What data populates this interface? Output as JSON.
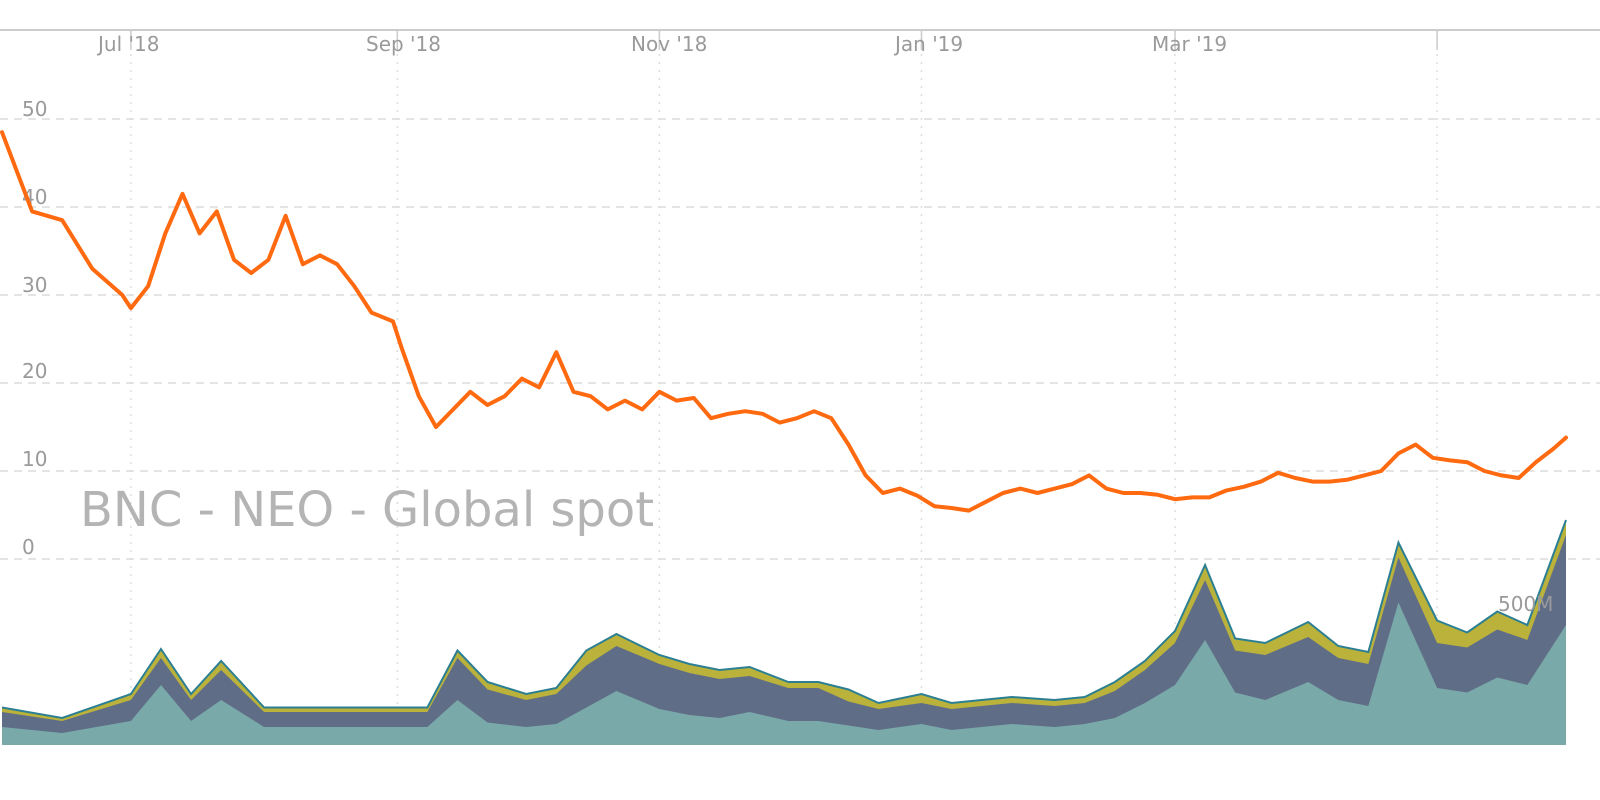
{
  "chart_data": [
    {
      "type": "line",
      "title": "BNC - NEO - Global spot",
      "xlabel": "",
      "ylabel": "",
      "x_tick_labels": [
        "Jul '18",
        "Sep '18",
        "Nov '18",
        "Jan '19",
        "Mar '19"
      ],
      "y_tick_labels": [
        "50",
        "40",
        "30",
        "20",
        "10",
        "0"
      ],
      "ylim": [
        0,
        50
      ],
      "grid": true,
      "legend": "none",
      "colors": {
        "price": "#ff6a10",
        "grid": "#dcdcdc",
        "text": "#9a9a9a"
      },
      "series": [
        {
          "x": [
            "2018-06-01",
            "2018-06-08",
            "2018-06-15",
            "2018-06-22",
            "2018-06-29",
            "2018-07-01",
            "2018-07-05",
            "2018-07-09",
            "2018-07-13",
            "2018-07-17",
            "2018-07-21",
            "2018-07-25",
            "2018-07-29",
            "2018-08-02",
            "2018-08-06",
            "2018-08-10",
            "2018-08-14",
            "2018-08-18",
            "2018-08-22",
            "2018-08-26",
            "2018-08-31",
            "2018-09-02",
            "2018-09-06",
            "2018-09-10",
            "2018-09-14",
            "2018-09-18",
            "2018-09-22",
            "2018-09-26",
            "2018-09-30",
            "2018-10-04",
            "2018-10-08",
            "2018-10-12",
            "2018-10-16",
            "2018-10-20",
            "2018-10-24",
            "2018-10-28",
            "2018-11-01",
            "2018-11-05",
            "2018-11-09",
            "2018-11-13",
            "2018-11-17",
            "2018-11-21",
            "2018-11-25",
            "2018-11-29",
            "2018-12-03",
            "2018-12-07",
            "2018-12-11",
            "2018-12-15",
            "2018-12-19",
            "2018-12-23",
            "2018-12-27",
            "2018-12-31",
            "2019-01-04",
            "2019-01-08",
            "2019-01-12",
            "2019-01-16",
            "2019-01-20",
            "2019-01-24",
            "2019-01-28",
            "2019-02-01",
            "2019-02-05",
            "2019-02-09",
            "2019-02-13",
            "2019-02-17",
            "2019-02-21",
            "2019-02-25",
            "2019-03-01",
            "2019-03-05",
            "2019-03-09",
            "2019-03-13",
            "2019-03-17",
            "2019-03-21",
            "2019-03-25",
            "2019-03-29",
            "2019-04-02",
            "2019-04-06",
            "2019-04-10",
            "2019-04-14",
            "2019-04-18",
            "2019-04-22",
            "2019-04-26",
            "2019-04-30",
            "2019-05-04",
            "2019-05-08",
            "2019-05-12",
            "2019-05-16",
            "2019-05-20",
            "2019-05-24",
            "2019-05-28",
            "2019-05-31"
          ],
          "values": [
            48.5,
            39.5,
            38.5,
            33,
            30,
            28.5,
            31,
            37,
            41.5,
            37,
            39.5,
            34,
            32.5,
            34,
            39,
            33.5,
            34.5,
            33.5,
            31,
            28,
            27,
            24,
            18.5,
            15,
            17,
            19,
            17.5,
            18.5,
            20.5,
            19.5,
            23.5,
            19,
            18.5,
            17,
            18,
            17,
            19,
            18,
            18.3,
            16,
            16.5,
            16.8,
            16.5,
            15.5,
            16,
            16.8,
            16,
            13,
            9.5,
            7.5,
            8,
            7.2,
            6,
            5.8,
            5.5,
            6.5,
            7.5,
            8,
            7.5,
            8,
            8.5,
            9.5,
            8,
            7.5,
            7.5,
            7.3,
            6.8,
            7,
            7,
            7.8,
            8.2,
            8.8,
            9.8,
            9.2,
            8.8,
            8.8,
            9,
            9.5,
            10,
            12,
            13,
            11.5,
            11.2,
            11,
            10,
            9.5,
            9.2,
            11,
            12.5,
            13.8
          ]
        }
      ]
    },
    {
      "type": "area",
      "title": "",
      "xlabel": "",
      "ylabel": "",
      "y_tick_labels": [
        "500M"
      ],
      "stacked": true,
      "colors": {
        "layer1": "#7aa9a9",
        "layer2": "#5f6d87",
        "layer3": "#bab23a",
        "outline": "#2c7f93"
      },
      "x": [
        "2018-06-01",
        "2018-06-15",
        "2018-07-01",
        "2018-07-08",
        "2018-07-15",
        "2018-07-22",
        "2018-08-01",
        "2018-08-15",
        "2018-09-01",
        "2018-09-08",
        "2018-09-15",
        "2018-09-22",
        "2018-10-01",
        "2018-10-08",
        "2018-10-15",
        "2018-10-22",
        "2018-11-01",
        "2018-11-08",
        "2018-11-15",
        "2018-11-22",
        "2018-12-01",
        "2018-12-08",
        "2018-12-15",
        "2018-12-22",
        "2019-01-01",
        "2019-01-08",
        "2019-01-15",
        "2019-01-22",
        "2019-02-01",
        "2019-02-08",
        "2019-02-15",
        "2019-02-22",
        "2019-03-01",
        "2019-03-08",
        "2019-03-15",
        "2019-03-22",
        "2019-04-01",
        "2019-04-08",
        "2019-04-15",
        "2019-04-22",
        "2019-05-01",
        "2019-05-08",
        "2019-05-15",
        "2019-05-22",
        "2019-05-31"
      ],
      "series": [
        {
          "values": [
            12,
            8,
            16,
            40,
            16,
            30,
            12,
            12,
            12,
            12,
            30,
            15,
            12,
            14,
            25,
            36,
            24,
            20,
            18,
            22,
            16,
            16,
            13,
            10,
            14,
            10,
            12,
            14,
            12,
            14,
            18,
            28,
            40,
            70,
            35,
            30,
            42,
            30,
            26,
            95,
            38,
            35,
            45,
            40,
            80
          ]
        },
        {
          "values": [
            10,
            8,
            14,
            18,
            14,
            20,
            10,
            10,
            10,
            10,
            28,
            22,
            18,
            20,
            28,
            30,
            30,
            28,
            26,
            24,
            22,
            22,
            16,
            14,
            14,
            14,
            14,
            14,
            14,
            14,
            18,
            22,
            28,
            40,
            28,
            30,
            30,
            28,
            28,
            30,
            30,
            30,
            32,
            30,
            60
          ]
        },
        {
          "values": [
            3,
            2,
            4,
            6,
            4,
            6,
            3,
            3,
            3,
            3,
            5,
            5,
            4,
            4,
            10,
            8,
            6,
            6,
            6,
            6,
            4,
            4,
            8,
            4,
            6,
            4,
            4,
            4,
            4,
            4,
            6,
            6,
            8,
            10,
            8,
            8,
            10,
            8,
            8,
            10,
            15,
            10,
            12,
            10,
            10
          ]
        }
      ]
    }
  ]
}
